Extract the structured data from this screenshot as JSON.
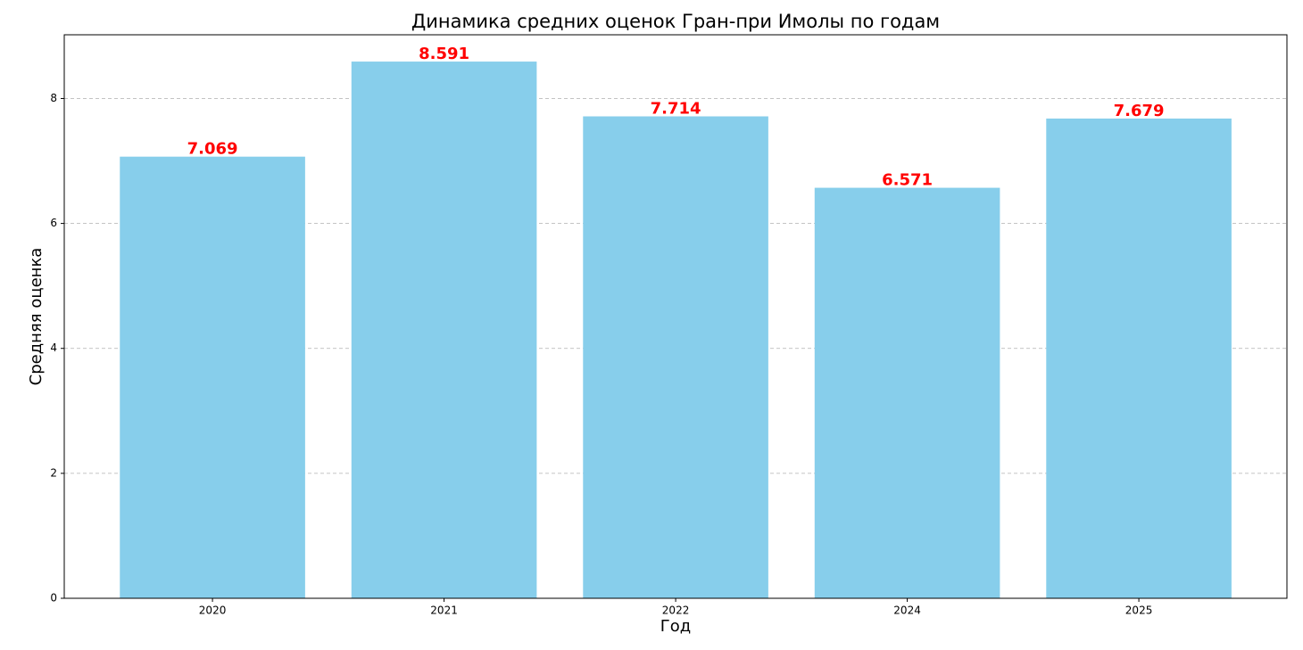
{
  "chart_data": {
    "type": "bar",
    "title": "Динамика средних оценок Гран-при Имолы по годам",
    "x_label": "Год",
    "y_label": "Средняя оценка",
    "categories": [
      "2020",
      "2021",
      "2022",
      "2024",
      "2025"
    ],
    "values": [
      7.069,
      8.591,
      7.714,
      6.571,
      7.679
    ],
    "color": "#87ceeb",
    "value_label_color": "#ff0000",
    "ylim": [
      0,
      9.02
    ],
    "yticks": [
      0,
      2,
      4,
      6,
      8
    ],
    "grid": true
  }
}
